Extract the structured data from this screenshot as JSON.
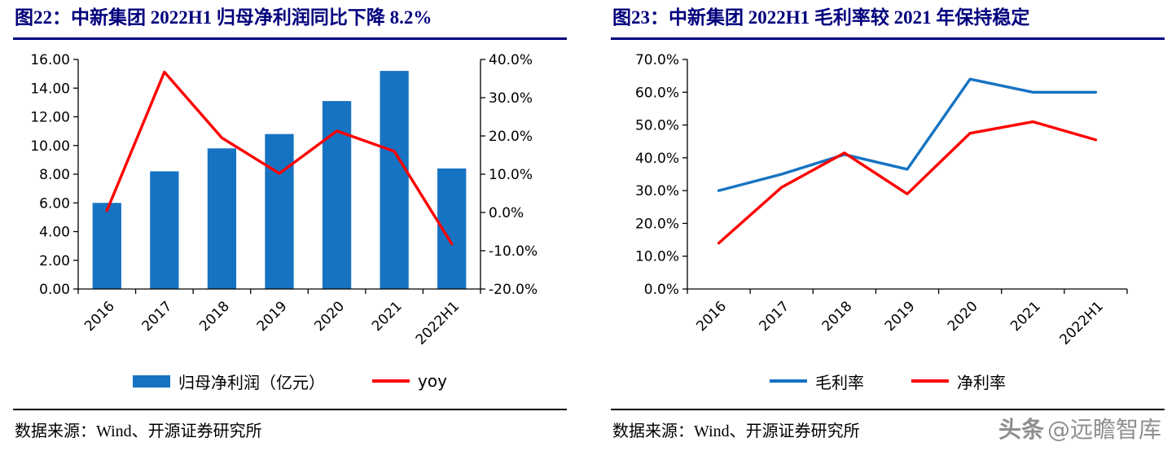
{
  "panels": [
    {
      "title": "图22：中新集团 2022H1 归母净利润同比下降 8.2%",
      "source": "数据来源：Wind、开源证券研究所"
    },
    {
      "title": "图23：中新集团 2022H1 毛利率较 2021 年保持稳定",
      "source": "数据来源：Wind、开源证券研究所"
    }
  ],
  "watermark": {
    "brand": "头条",
    "handle": "@远瞻智库",
    "color": "#8f8f8f"
  },
  "colors": {
    "title_navy": "#00007D",
    "bar_blue": "#1673C2",
    "line_red": "#FF0000",
    "line_blue": "#1673C2"
  },
  "chart_data": [
    {
      "type": "bar",
      "title": "中新集团 2022H1 归母净利润同比下降 8.2%",
      "categories": [
        "2016",
        "2017",
        "2018",
        "2019",
        "2020",
        "2021",
        "2022H1"
      ],
      "bars": {
        "name": "归母净利润（亿元）",
        "axis": "left",
        "color": "#1673C2",
        "values": [
          6.0,
          8.2,
          9.8,
          10.8,
          13.1,
          15.2,
          8.4
        ]
      },
      "lines": [
        {
          "name": "yoy",
          "axis": "right",
          "color": "#FF0000",
          "values": [
            0.5,
            36.7,
            19.5,
            10.2,
            21.3,
            16.0,
            -8.2
          ]
        }
      ],
      "left_axis": {
        "min": 0,
        "max": 16,
        "ticks": [
          "0.00",
          "2.00",
          "4.00",
          "6.00",
          "8.00",
          "10.00",
          "12.00",
          "14.00",
          "16.00"
        ]
      },
      "right_axis": {
        "min": -20,
        "max": 40,
        "ticks": [
          "-20.0%",
          "-10.0%",
          "0.0%",
          "10.0%",
          "20.0%",
          "30.0%",
          "40.0%"
        ]
      },
      "grid": false,
      "legend_position": "bottom"
    },
    {
      "type": "line",
      "title": "中新集团 2022H1 毛利率较 2021 年保持稳定",
      "categories": [
        "2016",
        "2017",
        "2018",
        "2019",
        "2020",
        "2021",
        "2022H1"
      ],
      "lines": [
        {
          "name": "毛利率",
          "axis": "left",
          "color": "#1673C2",
          "values": [
            30,
            35,
            41,
            36.5,
            64,
            60,
            60
          ]
        },
        {
          "name": "净利率",
          "axis": "left",
          "color": "#FF0000",
          "values": [
            14,
            31,
            41.5,
            29,
            47.5,
            51,
            45.5
          ]
        }
      ],
      "left_axis": {
        "min": 0,
        "max": 70,
        "ticks": [
          "0.0%",
          "10.0%",
          "20.0%",
          "30.0%",
          "40.0%",
          "50.0%",
          "60.0%",
          "70.0%"
        ]
      },
      "grid": false,
      "legend_position": "bottom"
    }
  ]
}
